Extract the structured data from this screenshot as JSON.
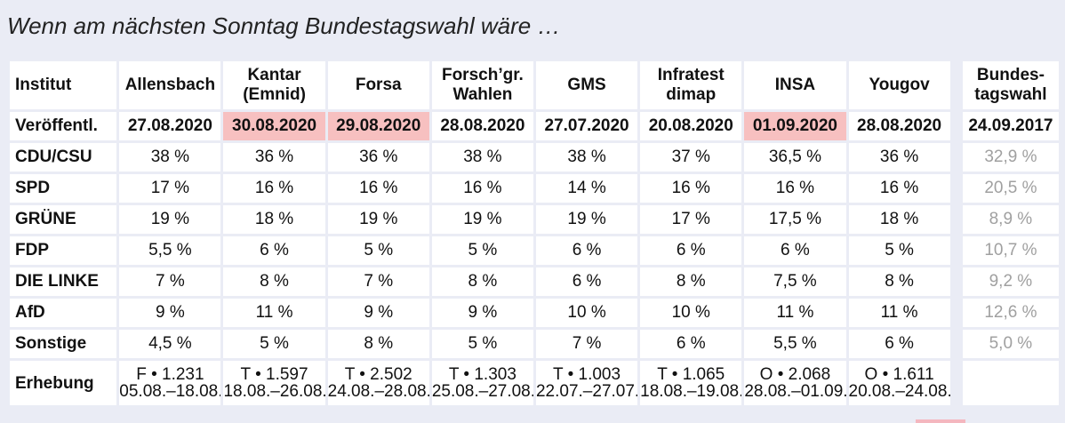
{
  "title": "Wenn am nächsten Sonntag Bundestagswahl wäre …",
  "chart_data": {
    "type": "table",
    "row_header_label": "Institut",
    "columns": [
      {
        "name1": "Allensbach",
        "name2": "",
        "style": "link",
        "published": "27.08.2020",
        "highlight": false,
        "erhebung1": "F • 1.231",
        "erhebung2": "05.08.–18.08."
      },
      {
        "name1": "Kantar",
        "name2": "(Emnid)",
        "style": "link",
        "published": "30.08.2020",
        "highlight": true,
        "erhebung1": "T • 1.597",
        "erhebung2": "18.08.–26.08."
      },
      {
        "name1": "Forsa",
        "name2": "",
        "style": "link",
        "published": "29.08.2020",
        "highlight": true,
        "erhebung1": "T • 2.502",
        "erhebung2": "24.08.–28.08."
      },
      {
        "name1": "Forsch’gr.",
        "name2": "Wahlen",
        "style": "visited",
        "published": "28.08.2020",
        "highlight": false,
        "erhebung1": "T • 1.303",
        "erhebung2": "25.08.–27.08."
      },
      {
        "name1": "GMS",
        "name2": "",
        "style": "link",
        "published": "27.07.2020",
        "highlight": false,
        "erhebung1": "T • 1.003",
        "erhebung2": "22.07.–27.07."
      },
      {
        "name1": "Infratest",
        "name2": "dimap",
        "style": "link",
        "published": "20.08.2020",
        "highlight": false,
        "erhebung1": "T • 1.065",
        "erhebung2": "18.08.–19.08."
      },
      {
        "name1": "INSA",
        "name2": "",
        "style": "link",
        "published": "01.09.2020",
        "highlight": true,
        "erhebung1": "O • 2.068",
        "erhebung2": "28.08.–01.09."
      },
      {
        "name1": "Yougov",
        "name2": "",
        "style": "link",
        "published": "28.08.2020",
        "highlight": false,
        "erhebung1": "O • 1.611",
        "erhebung2": "20.08.–24.08."
      }
    ],
    "reference": {
      "name1": "Bundes-",
      "name2": "tagswahl",
      "published": "24.09.2017"
    },
    "published_label": "Veröffentl.",
    "erhebung_label": "Erhebung",
    "parties": [
      {
        "name": "CDU/CSU",
        "values": [
          "38 %",
          "36 %",
          "36 %",
          "38 %",
          "38 %",
          "37 %",
          "36,5 %",
          "36 %"
        ],
        "reference": "32,9 %"
      },
      {
        "name": "SPD",
        "values": [
          "17 %",
          "16 %",
          "16 %",
          "16 %",
          "14 %",
          "16 %",
          "16 %",
          "16 %"
        ],
        "reference": "20,5 %"
      },
      {
        "name": "GRÜNE",
        "values": [
          "19 %",
          "18 %",
          "19 %",
          "19 %",
          "19 %",
          "17 %",
          "17,5 %",
          "18 %"
        ],
        "reference": "8,9 %"
      },
      {
        "name": "FDP",
        "values": [
          "5,5 %",
          "6 %",
          "5 %",
          "5 %",
          "6 %",
          "6 %",
          "6 %",
          "5 %"
        ],
        "reference": "10,7 %"
      },
      {
        "name": "DIE LINKE",
        "values": [
          "7 %",
          "8 %",
          "7 %",
          "8 %",
          "6 %",
          "8 %",
          "7,5 %",
          "8 %"
        ],
        "reference": "9,2 %"
      },
      {
        "name": "AfD",
        "values": [
          "9 %",
          "11 %",
          "9 %",
          "9 %",
          "10 %",
          "10 %",
          "11 %",
          "11 %"
        ],
        "reference": "12,6 %"
      },
      {
        "name": "Sonstige",
        "values": [
          "4,5 %",
          "5 %",
          "8 %",
          "5 %",
          "7 %",
          "6 %",
          "5,5 %",
          "6 %"
        ],
        "reference": "5,0 %"
      }
    ]
  }
}
